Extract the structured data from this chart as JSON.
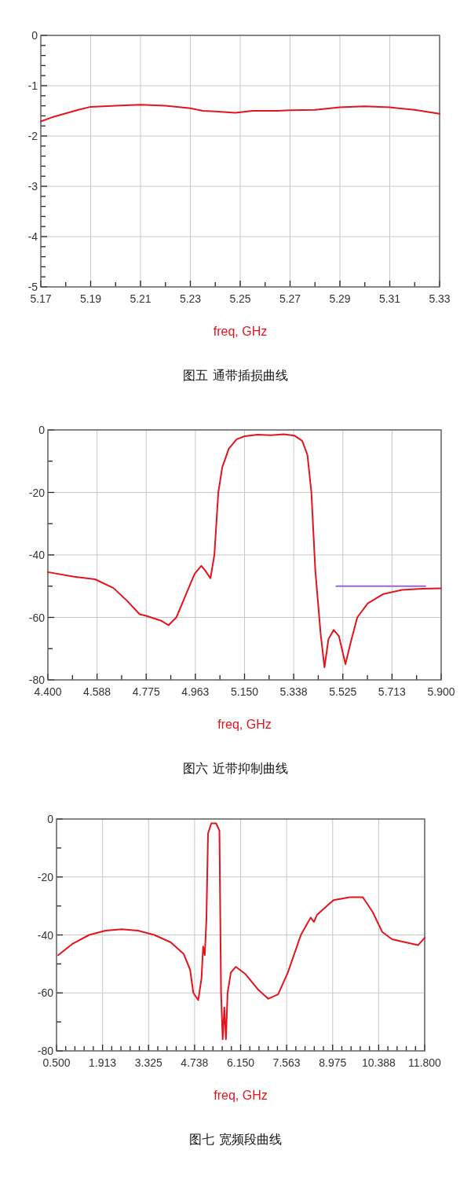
{
  "chart_data": [
    {
      "type": "line",
      "title": "图五 通带插损曲线",
      "xlabel": "freq, GHz",
      "grid": true,
      "xlim": [
        5.17,
        5.33
      ],
      "ylim": [
        -5,
        0
      ],
      "xticks": [
        5.17,
        {
          "value": 5.18,
          "label": null
        },
        5.19,
        {
          "value": 5.2,
          "label": null
        },
        5.21,
        {
          "value": 5.22,
          "label": null
        },
        5.23,
        {
          "value": 5.24,
          "label": null
        },
        5.25,
        {
          "value": 5.26,
          "label": null
        },
        5.27,
        {
          "value": 5.28,
          "label": null
        },
        5.29,
        {
          "value": 5.3,
          "label": null
        },
        5.31,
        {
          "value": 5.32,
          "label": null
        },
        5.33
      ],
      "yticks": [
        0,
        {
          "value": -0.2,
          "label": null
        },
        {
          "value": -0.4,
          "label": null
        },
        {
          "value": -0.6,
          "label": null
        },
        {
          "value": -0.8,
          "label": null
        },
        -1,
        {
          "value": -1.2,
          "label": null
        },
        {
          "value": -1.4,
          "label": null
        },
        {
          "value": -1.6,
          "label": null
        },
        {
          "value": -1.8,
          "label": null
        },
        -2,
        {
          "value": -2.2,
          "label": null
        },
        {
          "value": -2.4,
          "label": null
        },
        {
          "value": -2.6,
          "label": null
        },
        {
          "value": -2.8,
          "label": null
        },
        -3,
        {
          "value": -3.2,
          "label": null
        },
        {
          "value": -3.4,
          "label": null
        },
        {
          "value": -3.6,
          "label": null
        },
        {
          "value": -3.8,
          "label": null
        },
        -4,
        {
          "value": -4.2,
          "label": null
        },
        {
          "value": -4.4,
          "label": null
        },
        {
          "value": -4.6,
          "label": null
        },
        {
          "value": -4.8,
          "label": null
        },
        -5
      ],
      "series": [
        {
          "color": "#e3141c",
          "x": [
            5.17,
            5.175,
            5.18,
            5.185,
            5.19,
            5.2,
            5.21,
            5.22,
            5.23,
            5.235,
            5.24,
            5.248,
            5.255,
            5.265,
            5.27,
            5.28,
            5.29,
            5.3,
            5.31,
            5.32,
            5.33
          ],
          "values": [
            -1.71,
            -1.62,
            -1.55,
            -1.48,
            -1.42,
            -1.4,
            -1.38,
            -1.4,
            -1.45,
            -1.5,
            -1.51,
            -1.54,
            -1.5,
            -1.5,
            -1.49,
            -1.48,
            -1.43,
            -1.41,
            -1.43,
            -1.48,
            -1.56
          ]
        }
      ]
    },
    {
      "type": "line",
      "title": "图六 近带抑制曲线",
      "xlabel": "freq, GHz",
      "grid": true,
      "xlim": [
        4.4,
        5.9
      ],
      "ylim": [
        -80,
        0
      ],
      "xticks": [
        {
          "value": 4.4,
          "label": "4.400"
        },
        {
          "value": 4.49375,
          "label": null
        },
        {
          "value": 4.5875,
          "label": "4.588"
        },
        {
          "value": 4.68125,
          "label": null
        },
        {
          "value": 4.775,
          "label": "4.775"
        },
        {
          "value": 4.86875,
          "label": null
        },
        {
          "value": 4.9625,
          "label": "4.963"
        },
        {
          "value": 5.05625,
          "label": null
        },
        {
          "value": 5.15,
          "label": "5.150"
        },
        {
          "value": 5.24375,
          "label": null
        },
        {
          "value": 5.3375,
          "label": "5.338"
        },
        {
          "value": 5.43125,
          "label": null
        },
        {
          "value": 5.525,
          "label": "5.525"
        },
        {
          "value": 5.61875,
          "label": null
        },
        {
          "value": 5.7125,
          "label": "5.713"
        },
        {
          "value": 5.80625,
          "label": null
        },
        {
          "value": 5.9,
          "label": "5.900"
        }
      ],
      "yticks": [
        0,
        {
          "value": -10,
          "label": null
        },
        -20,
        {
          "value": -30,
          "label": null
        },
        -40,
        {
          "value": -50,
          "label": null
        },
        -60,
        {
          "value": -70,
          "label": null
        },
        -80
      ],
      "series": [
        {
          "color": "#e3141c",
          "x": [
            4.4,
            4.5,
            4.58,
            4.65,
            4.7,
            4.75,
            4.775,
            4.83,
            4.86,
            4.89,
            4.93,
            4.96,
            4.985,
            5.0,
            5.02,
            5.035,
            5.05,
            5.065,
            5.09,
            5.12,
            5.15,
            5.2,
            5.25,
            5.3,
            5.34,
            5.37,
            5.39,
            5.405,
            5.42,
            5.44,
            5.455,
            5.47,
            5.49,
            5.51,
            5.535,
            5.555,
            5.58,
            5.62,
            5.68,
            5.75,
            5.83,
            5.9
          ],
          "values": [
            -45.5,
            -47,
            -47.8,
            -50.6,
            -54.5,
            -59,
            -59.5,
            -61,
            -62.5,
            -60,
            -52,
            -46,
            -43.5,
            -45,
            -47.5,
            -40,
            -20,
            -12,
            -6,
            -3,
            -2,
            -1.5,
            -1.7,
            -1.4,
            -1.8,
            -3.5,
            -8,
            -20,
            -45,
            -65,
            -76,
            -67,
            -64,
            -66,
            -75,
            -68,
            -60,
            -55.5,
            -52.5,
            -51.2,
            -50.8,
            -50.7
          ]
        },
        {
          "color": "#9966dd",
          "x": [
            5.5,
            5.84
          ],
          "values": [
            -50,
            -50
          ]
        }
      ]
    },
    {
      "type": "line",
      "title": "图七 宽频段曲线",
      "xlabel": "freq, GHz",
      "grid": true,
      "xlim": [
        0.5,
        11.8
      ],
      "ylim": [
        -80,
        0
      ],
      "xticks": [
        {
          "value": 0.5,
          "label": "0.500"
        },
        {
          "value": 0.7825,
          "label": null
        },
        {
          "value": 1.065,
          "label": null
        },
        {
          "value": 1.3475,
          "label": null
        },
        {
          "value": 1.63,
          "label": null
        },
        {
          "value": 1.9125,
          "label": "1.913"
        },
        {
          "value": 2.195,
          "label": null
        },
        {
          "value": 2.4775,
          "label": null
        },
        {
          "value": 2.76,
          "label": null
        },
        {
          "value": 3.0425,
          "label": null
        },
        {
          "value": 3.325,
          "label": "3.325"
        },
        {
          "value": 3.6075,
          "label": null
        },
        {
          "value": 3.89,
          "label": null
        },
        {
          "value": 4.1725,
          "label": null
        },
        {
          "value": 4.455,
          "label": null
        },
        {
          "value": 4.7375,
          "label": "4.738"
        },
        {
          "value": 5.02,
          "label": null
        },
        {
          "value": 5.3025,
          "label": null
        },
        {
          "value": 5.585,
          "label": null
        },
        {
          "value": 5.8675,
          "label": null
        },
        {
          "value": 6.15,
          "label": "6.150"
        },
        {
          "value": 6.4325,
          "label": null
        },
        {
          "value": 6.715,
          "label": null
        },
        {
          "value": 6.9975,
          "label": null
        },
        {
          "value": 7.28,
          "label": null
        },
        {
          "value": 7.5625,
          "label": "7.563"
        },
        {
          "value": 7.845,
          "label": null
        },
        {
          "value": 8.1275,
          "label": null
        },
        {
          "value": 8.41,
          "label": null
        },
        {
          "value": 8.6925,
          "label": null
        },
        {
          "value": 8.975,
          "label": "8.975"
        },
        {
          "value": 9.2575,
          "label": null
        },
        {
          "value": 9.54,
          "label": null
        },
        {
          "value": 9.8225,
          "label": null
        },
        {
          "value": 10.105,
          "label": null
        },
        {
          "value": 10.3875,
          "label": "10.388"
        },
        {
          "value": 10.67,
          "label": null
        },
        {
          "value": 10.9525,
          "label": null
        },
        {
          "value": 11.235,
          "label": null
        },
        {
          "value": 11.5175,
          "label": null
        },
        {
          "value": 11.8,
          "label": "11.800"
        }
      ],
      "yticks": [
        0,
        {
          "value": -10,
          "label": null
        },
        -20,
        {
          "value": -30,
          "label": null
        },
        -40,
        {
          "value": -50,
          "label": null
        },
        -60,
        {
          "value": -70,
          "label": null
        },
        -80
      ],
      "series": [
        {
          "color": "#e3141c",
          "x": [
            0.55,
            1.0,
            1.5,
            2.0,
            2.5,
            3.0,
            3.5,
            4.0,
            4.4,
            4.6,
            4.7,
            4.85,
            4.95,
            5.0,
            5.05,
            5.1,
            5.15,
            5.25,
            5.4,
            5.5,
            5.55,
            5.6,
            5.65,
            5.7,
            5.75,
            5.85,
            6.0,
            6.3,
            6.7,
            7.0,
            7.3,
            7.6,
            8.0,
            8.3,
            8.4,
            8.5,
            8.7,
            9.0,
            9.5,
            9.9,
            10.2,
            10.5,
            10.8,
            11.2,
            11.6,
            11.8
          ],
          "values": [
            -47,
            -43,
            -40,
            -38.5,
            -38,
            -38.5,
            -40,
            -42.5,
            -46.5,
            -52,
            -60,
            -62.5,
            -55,
            -44,
            -47,
            -35,
            -5,
            -1.5,
            -1.5,
            -4,
            -60,
            -76,
            -65,
            -76,
            -60,
            -53,
            -51,
            -53.5,
            -59,
            -62,
            -60.5,
            -53,
            -40,
            -34,
            -35.5,
            -33,
            -31,
            -28,
            -27,
            -27,
            -32,
            -39,
            -41.5,
            -42.5,
            -43.5,
            -41
          ]
        }
      ]
    }
  ]
}
